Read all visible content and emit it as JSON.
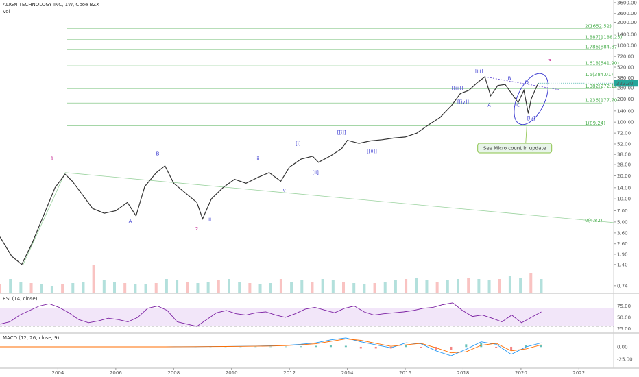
{
  "header": {
    "title": "ALIGN TECHNOLOGY INC, 1W, Cboe BZX",
    "vol_label": "Vol"
  },
  "colors": {
    "up": "#26a69a",
    "down": "#ef5350",
    "fib": "#4caf50",
    "wave": "#3f3fd1",
    "wave_major": "#c2188b",
    "rsi": "#7b1fa2",
    "rsi_band": "#e9d5f5",
    "macd": "#2196f3",
    "signal": "#ff6d00",
    "price_tag": "#26a69a"
  },
  "chart_data": {
    "type": "line",
    "title": "ALIGN TECHNOLOGY INC, 1W, Cboe BZX",
    "x_axis": {
      "ticks": [
        "2004",
        "2006",
        "2008",
        "2010",
        "2012",
        "2014",
        "2016",
        "2018",
        "2020",
        "2022"
      ],
      "range": [
        2002,
        2023.2
      ]
    },
    "y_axis": {
      "scale": "log",
      "ticks": [
        "3600.00",
        "2600.00",
        "2000.00",
        "1400.00",
        "1000.00",
        "720.00",
        "520.00",
        "380.00",
        "280.00",
        "200.00",
        "140.00",
        "100.00",
        "72.00",
        "52.00",
        "38.00",
        "28.00",
        "20.00",
        "14.00",
        "10.00",
        "7.00",
        "5.00",
        "3.60",
        "2.60",
        "1.90",
        "1.40",
        "0.74"
      ],
      "range": [
        0.6,
        3900
      ]
    },
    "series": [
      {
        "values": [
          [
            2002.0,
            3.2
          ],
          [
            2002.4,
            1.8
          ],
          [
            2002.75,
            1.4
          ],
          [
            2003.1,
            2.6
          ],
          [
            2003.5,
            6.0
          ],
          [
            2003.9,
            14
          ],
          [
            2004.25,
            21
          ],
          [
            2004.5,
            17
          ],
          [
            2004.8,
            12
          ],
          [
            2005.2,
            7.5
          ],
          [
            2005.6,
            6.5
          ],
          [
            2006.0,
            7.0
          ],
          [
            2006.4,
            9.0
          ],
          [
            2006.7,
            6.0
          ],
          [
            2007.0,
            14.5
          ],
          [
            2007.4,
            22
          ],
          [
            2007.7,
            27
          ],
          [
            2008.0,
            16
          ],
          [
            2008.4,
            12
          ],
          [
            2008.8,
            9.0
          ],
          [
            2009.0,
            5.5
          ],
          [
            2009.3,
            10
          ],
          [
            2009.7,
            14
          ],
          [
            2010.1,
            18
          ],
          [
            2010.5,
            16
          ],
          [
            2010.9,
            19
          ],
          [
            2011.3,
            22
          ],
          [
            2011.7,
            17
          ],
          [
            2012.0,
            26
          ],
          [
            2012.4,
            33
          ],
          [
            2012.8,
            36
          ],
          [
            2013.0,
            30
          ],
          [
            2013.4,
            36
          ],
          [
            2013.8,
            45
          ],
          [
            2014.0,
            58
          ],
          [
            2014.4,
            53
          ],
          [
            2014.8,
            57
          ],
          [
            2015.2,
            59
          ],
          [
            2015.6,
            62
          ],
          [
            2016.0,
            64
          ],
          [
            2016.4,
            72
          ],
          [
            2016.8,
            92
          ],
          [
            2017.2,
            115
          ],
          [
            2017.6,
            165
          ],
          [
            2017.9,
            235
          ],
          [
            2018.2,
            260
          ],
          [
            2018.5,
            330
          ],
          [
            2018.75,
            390
          ],
          [
            2018.95,
            220
          ],
          [
            2019.2,
            300
          ],
          [
            2019.45,
            310
          ],
          [
            2019.7,
            230
          ],
          [
            2019.9,
            180
          ],
          [
            2020.1,
            260
          ],
          [
            2020.25,
            130
          ],
          [
            2020.35,
            200
          ],
          [
            2020.5,
            270
          ],
          [
            2020.6,
            322.3
          ]
        ]
      }
    ],
    "current_price": "322.30",
    "fib_levels": [
      {
        "label": "2(1652.52)",
        "value": 1652.52
      },
      {
        "label": "1.887(1188.25)",
        "value": 1188.25
      },
      {
        "label": "1.786(884.87)",
        "value": 884.87
      },
      {
        "label": "1.618(541.90)",
        "value": 541.9
      },
      {
        "label": "1.5(384.01)",
        "value": 384.01
      },
      {
        "label": "1.382(272.12)",
        "value": 272.12
      },
      {
        "label": "1.236(177.70)",
        "value": 177.7
      },
      {
        "label": "1(89.24)",
        "value": 89.24
      },
      {
        "label": "0(4.82)",
        "value": 4.82
      }
    ],
    "wave_labels_major": [
      {
        "text": "1",
        "x": 2003.8,
        "y": 32
      },
      {
        "text": "2",
        "x": 2008.8,
        "y": 3.9
      },
      {
        "text": "3",
        "x": 2021.0,
        "y": 600
      }
    ],
    "wave_labels": [
      {
        "text": "A",
        "x": 2006.5,
        "y": 4.9
      },
      {
        "text": "B",
        "x": 2007.45,
        "y": 37
      },
      {
        "text": "ii",
        "x": 2009.25,
        "y": 5.2
      },
      {
        "text": "iii",
        "x": 2010.9,
        "y": 32
      },
      {
        "text": "iv",
        "x": 2011.8,
        "y": 12.5
      },
      {
        "text": "[i]",
        "x": 2012.3,
        "y": 50
      },
      {
        "text": "[ii]",
        "x": 2012.9,
        "y": 21
      },
      {
        "text": "[[i]]",
        "x": 2013.8,
        "y": 70
      },
      {
        "text": "[[ii]]",
        "x": 2014.85,
        "y": 40
      },
      {
        "text": "[[iii]]",
        "x": 2017.8,
        "y": 265
      },
      {
        "text": "[[iv]]",
        "x": 2018.0,
        "y": 175
      },
      {
        "text": "[iii]",
        "x": 2018.55,
        "y": 440
      },
      {
        "text": "A",
        "x": 2018.9,
        "y": 160
      },
      {
        "text": "B",
        "x": 2019.6,
        "y": 355
      },
      {
        "text": "C",
        "x": 2019.9,
        "y": 160
      },
      {
        "text": "D",
        "x": 2020.2,
        "y": 315
      },
      {
        "text": "[iv]",
        "x": 2020.35,
        "y": 108
      }
    ],
    "annotation": "See Micro count in update",
    "trendlines": [
      {
        "from": [
          2004.25,
          22
        ],
        "to": [
          2023.2,
          4.9
        ]
      },
      {
        "from": [
          2002.8,
          1.4
        ],
        "to": [
          2004.25,
          22
        ]
      },
      {
        "from": [
          2018.75,
          390
        ],
        "to": [
          2021.3,
          265
        ]
      }
    ],
    "volume": [
      0.3,
      0.5,
      0.4,
      0.35,
      0.3,
      0.25,
      0.3,
      0.35,
      0.4,
      1.0,
      0.45,
      0.4,
      0.35,
      0.3,
      0.3,
      0.35,
      0.5,
      0.45,
      0.4,
      0.35,
      0.4,
      0.45,
      0.5,
      0.4,
      0.35,
      0.3,
      0.35,
      0.5,
      0.4,
      0.45,
      0.4,
      0.5,
      0.45,
      0.4,
      0.35,
      0.3,
      0.35,
      0.4,
      0.45,
      0.5,
      0.55,
      0.45,
      0.4,
      0.45,
      0.5,
      0.55,
      0.5,
      0.45,
      0.5,
      0.6,
      0.55,
      0.7,
      0.5
    ],
    "rsi": {
      "label": "RSI (14, close)",
      "ticks": [
        "75.00",
        "50.00",
        "25.00"
      ],
      "upper": 70,
      "lower": 30,
      "range": [
        18,
        100
      ],
      "values": [
        35,
        40,
        55,
        65,
        75,
        80,
        72,
        60,
        45,
        38,
        42,
        48,
        45,
        40,
        50,
        70,
        75,
        65,
        40,
        35,
        30,
        45,
        60,
        65,
        58,
        55,
        60,
        62,
        55,
        50,
        58,
        68,
        72,
        66,
        60,
        70,
        75,
        62,
        55,
        58,
        60,
        62,
        65,
        70,
        72,
        78,
        82,
        65,
        52,
        55,
        48,
        40,
        55,
        38,
        50,
        62
      ]
    },
    "macd": {
      "label": "MACD (12, 26, close, 9)",
      "ticks": [
        "0.00",
        "-25.00"
      ],
      "range": [
        -40,
        22
      ],
      "macd_values": [
        0,
        0,
        0,
        0,
        0,
        0,
        0,
        0,
        0,
        0,
        0,
        0,
        0.2,
        0.3,
        0.5,
        0.8,
        1,
        1.5,
        2,
        3,
        5,
        8,
        14,
        18,
        10,
        4,
        -2,
        8,
        6,
        -8,
        -18,
        -5,
        10,
        5,
        -15,
        0,
        8
      ],
      "signal_values": [
        0,
        0,
        0,
        0,
        0,
        0,
        0,
        0,
        0,
        0,
        0,
        0,
        0.1,
        0.2,
        0.4,
        0.6,
        0.9,
        1.2,
        1.6,
        2.4,
        4,
        6,
        11,
        16,
        13,
        7,
        1,
        4,
        7,
        -2,
        -12,
        -10,
        3,
        7,
        -8,
        -4,
        4
      ]
    }
  }
}
